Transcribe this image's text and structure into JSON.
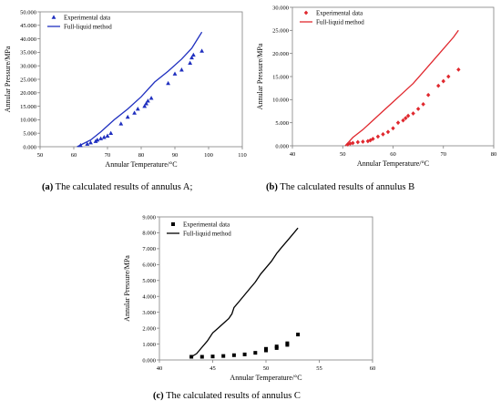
{
  "chart_data": [
    {
      "id": "a",
      "type": "scatter",
      "caption_tag": "(a)",
      "caption_text": " The calculated results of annulus A;",
      "xlabel": "Annular Temperature/°C",
      "ylabel": "Annular Pressure/MPa",
      "xlim": [
        50,
        110
      ],
      "ylim": [
        0,
        50
      ],
      "xticks": [
        "50",
        "60",
        "70",
        "80",
        "90",
        "100",
        "110"
      ],
      "yticks": [
        "0.000",
        "5.000",
        "10.000",
        "15.000",
        "20.000",
        "25.000",
        "30.000",
        "35.000",
        "40.000",
        "45.000",
        "50.000"
      ],
      "legend_position": "top-left",
      "colors": {
        "marker": "#1f2fbf",
        "line": "#1f2fbf"
      },
      "series": [
        {
          "name": "Experimental data",
          "kind": "scatter",
          "marker": "triangle",
          "x": [
            62,
            64,
            65,
            66.5,
            67,
            68,
            69,
            70,
            71,
            74,
            76,
            78,
            79,
            81,
            81.5,
            82,
            83,
            88,
            90,
            92,
            94.5,
            95,
            95.5,
            98
          ],
          "y": [
            0.5,
            1,
            1.5,
            2,
            2.5,
            3,
            3.5,
            4,
            5,
            8.5,
            11,
            12.5,
            14,
            15,
            16,
            17,
            18,
            23.5,
            27,
            28.5,
            31,
            33,
            34,
            35.5
          ]
        },
        {
          "name": "Full-liquid method",
          "kind": "line",
          "x": [
            61,
            65,
            68,
            72,
            76,
            80,
            84,
            88,
            92,
            95,
            97,
            98
          ],
          "y": [
            0,
            2.5,
            5.5,
            10,
            14,
            18.5,
            24,
            28,
            32.5,
            36.5,
            40.5,
            42.5
          ]
        }
      ]
    },
    {
      "id": "b",
      "type": "scatter",
      "caption_tag": "(b)",
      "caption_text": " The calculated results of annulus B",
      "xlabel": "Annular Temperature/°C",
      "ylabel": "Annular Pressure/MPa",
      "xlim": [
        40,
        80
      ],
      "ylim": [
        0,
        30
      ],
      "xticks": [
        "40",
        "50",
        "60",
        "70",
        "80"
      ],
      "yticks": [
        "0.000",
        "5.000",
        "10.000",
        "15.000",
        "20.000",
        "25.000",
        "30.000"
      ],
      "legend_position": "top-left",
      "colors": {
        "marker": "#e0282e",
        "line": "#e0282e"
      },
      "series": [
        {
          "name": "Experimental data",
          "kind": "scatter",
          "marker": "diamond",
          "x": [
            51,
            51.5,
            52,
            53,
            54,
            55,
            55.5,
            56,
            57,
            58,
            59,
            60,
            61,
            62,
            62.5,
            63,
            64,
            65,
            66,
            67,
            69,
            70,
            71,
            73
          ],
          "y": [
            0.3,
            0.5,
            0.6,
            0.8,
            0.9,
            1,
            1.2,
            1.5,
            2,
            2.5,
            3,
            3.8,
            5,
            5.5,
            6,
            6.5,
            7,
            8,
            9,
            11,
            13,
            14,
            15,
            16.5
          ]
        },
        {
          "name": "Full-liquid method",
          "kind": "line",
          "x": [
            50.5,
            52,
            54,
            56,
            58,
            60,
            62,
            64,
            66,
            68,
            70,
            72,
            73
          ],
          "y": [
            0,
            1.8,
            3.5,
            5.5,
            7.5,
            9.5,
            11.5,
            13.5,
            16,
            18.5,
            21,
            23.5,
            25
          ]
        }
      ]
    },
    {
      "id": "c",
      "type": "scatter",
      "caption_tag": "(c)",
      "caption_text": " The calculated results of annulus C",
      "xlabel": "Annular Temperature/°C",
      "ylabel": "Annular Pressure/MPa",
      "xlim": [
        40,
        60
      ],
      "ylim": [
        0,
        9
      ],
      "xticks": [
        "40",
        "45",
        "50",
        "55",
        "60"
      ],
      "yticks": [
        "0.000",
        "1.000",
        "2.000",
        "3.000",
        "4.000",
        "5.000",
        "6.000",
        "7.000",
        "8.000",
        "9.000"
      ],
      "legend_position": "top-left",
      "colors": {
        "marker": "#000000",
        "line": "#000000"
      },
      "series": [
        {
          "name": "Experimental data",
          "kind": "scatter",
          "marker": "square",
          "x": [
            43,
            44,
            45,
            46,
            47,
            48,
            49,
            50,
            50,
            51,
            51,
            52,
            52,
            53
          ],
          "y": [
            0.2,
            0.2,
            0.22,
            0.25,
            0.3,
            0.35,
            0.45,
            0.6,
            0.7,
            0.75,
            0.85,
            0.95,
            1.05,
            1.6
          ]
        },
        {
          "name": "Full-liquid method",
          "kind": "line",
          "x": [
            43,
            43.5,
            44,
            44.5,
            45,
            45.5,
            46,
            46.5,
            46.8,
            47,
            47.5,
            48,
            48.5,
            49,
            49.5,
            50,
            50.5,
            51,
            51.5,
            52,
            52.5,
            53
          ],
          "y": [
            0.2,
            0.4,
            0.8,
            1.2,
            1.7,
            2,
            2.3,
            2.6,
            2.9,
            3.3,
            3.7,
            4.1,
            4.5,
            4.9,
            5.4,
            5.8,
            6.2,
            6.7,
            7.1,
            7.5,
            7.9,
            8.3
          ]
        }
      ]
    }
  ]
}
